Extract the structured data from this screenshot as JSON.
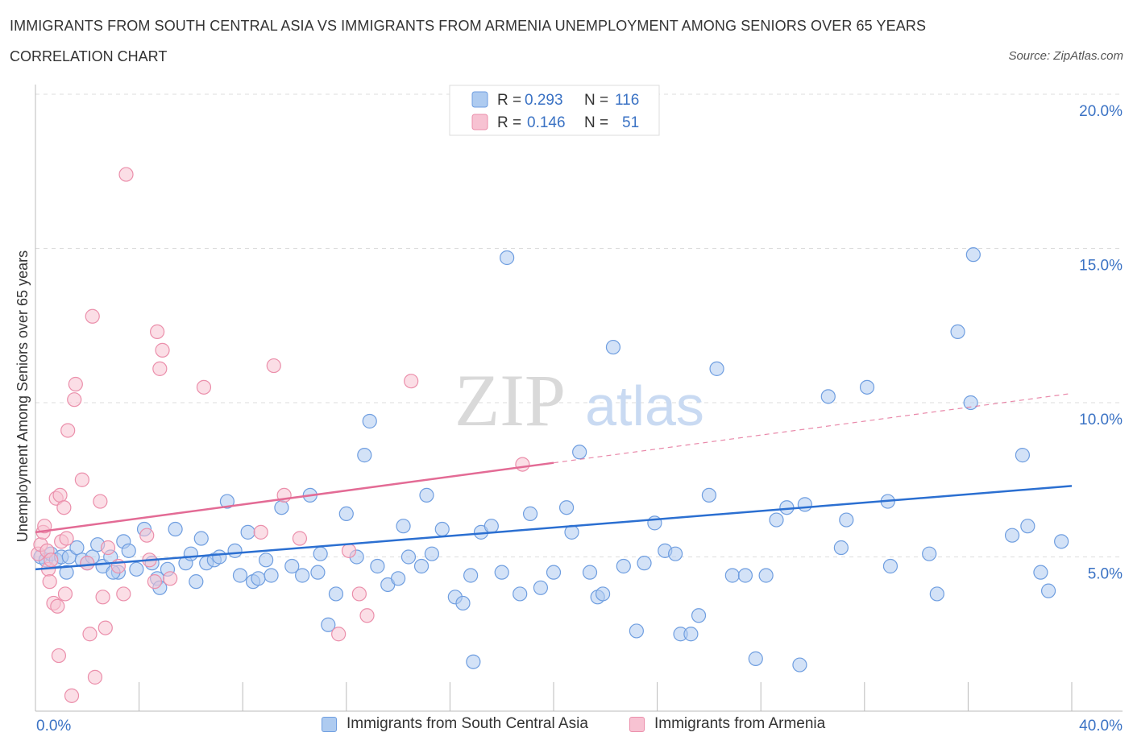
{
  "title": "IMMIGRANTS FROM SOUTH CENTRAL ASIA VS IMMIGRANTS FROM ARMENIA UNEMPLOYMENT AMONG SENIORS OVER 65 YEARS",
  "subtitle": "CORRELATION CHART",
  "source": "Source: ZipAtlas.com",
  "watermark": {
    "zip": "ZIP",
    "atlas": "atlas"
  },
  "colors": {
    "blue_fill": "#aecbf0",
    "blue_stroke": "#6f9ee0",
    "blue_line": "#2b6fd1",
    "pink_fill": "#f7c2d2",
    "pink_stroke": "#eb8fab",
    "pink_line": "#e36b95",
    "axis_label": "#3a72c4",
    "grid": "#dddddd"
  },
  "legend": {
    "r_label": "R =",
    "n_label": "N =",
    "series": [
      {
        "r": "0.293",
        "n": "116"
      },
      {
        "r": "0.146",
        "n": "51"
      }
    ]
  },
  "chart_data": {
    "type": "scatter",
    "title": "IMMIGRANTS FROM SOUTH CENTRAL ASIA VS IMMIGRANTS FROM ARMENIA UNEMPLOYMENT AMONG SENIORS OVER 65 YEARS",
    "xlabel": "",
    "ylabel": "Unemployment Among Seniors over 65 years",
    "xlim": [
      0,
      40
    ],
    "ylim": [
      0,
      20
    ],
    "x_tick_labels": [
      "0.0%",
      "40.0%"
    ],
    "y_ticks": [
      5,
      10,
      15,
      20
    ],
    "y_tick_labels": [
      "5.0%",
      "10.0%",
      "15.0%",
      "20.0%"
    ],
    "series": [
      {
        "name": "Immigrants from South Central Asia",
        "color": "blue",
        "trend": {
          "x0": 0,
          "y0": 4.6,
          "x1": 40,
          "y1": 7.3,
          "dashed_from": null
        },
        "points": [
          [
            0.2,
            5.0
          ],
          [
            0.4,
            4.9
          ],
          [
            0.6,
            5.1
          ],
          [
            0.8,
            4.9
          ],
          [
            1.0,
            5.0
          ],
          [
            1.2,
            4.5
          ],
          [
            1.3,
            5.0
          ],
          [
            1.6,
            5.3
          ],
          [
            1.8,
            4.9
          ],
          [
            2.0,
            4.8
          ],
          [
            2.2,
            5.0
          ],
          [
            2.4,
            5.4
          ],
          [
            2.6,
            4.7
          ],
          [
            2.9,
            5.0
          ],
          [
            3.2,
            4.5
          ],
          [
            3.4,
            5.5
          ],
          [
            3.6,
            5.2
          ],
          [
            3.9,
            4.6
          ],
          [
            4.2,
            5.9
          ],
          [
            4.5,
            4.8
          ],
          [
            4.7,
            4.3
          ],
          [
            4.8,
            4.0
          ],
          [
            5.1,
            4.6
          ],
          [
            5.4,
            5.9
          ],
          [
            5.8,
            4.8
          ],
          [
            6.0,
            5.1
          ],
          [
            6.2,
            4.2
          ],
          [
            6.6,
            4.8
          ],
          [
            6.9,
            4.9
          ],
          [
            7.1,
            5.0
          ],
          [
            7.4,
            6.8
          ],
          [
            7.7,
            5.2
          ],
          [
            7.9,
            4.4
          ],
          [
            8.2,
            5.8
          ],
          [
            8.4,
            4.2
          ],
          [
            8.6,
            4.3
          ],
          [
            8.9,
            4.9
          ],
          [
            9.1,
            4.4
          ],
          [
            9.5,
            6.6
          ],
          [
            9.9,
            4.7
          ],
          [
            10.3,
            4.4
          ],
          [
            10.6,
            7.0
          ],
          [
            11.0,
            5.1
          ],
          [
            11.3,
            2.8
          ],
          [
            11.6,
            3.8
          ],
          [
            12.0,
            6.4
          ],
          [
            12.4,
            5.0
          ],
          [
            12.7,
            8.3
          ],
          [
            12.9,
            9.4
          ],
          [
            13.2,
            4.7
          ],
          [
            13.6,
            4.1
          ],
          [
            14.0,
            4.3
          ],
          [
            14.2,
            6.0
          ],
          [
            14.4,
            5.0
          ],
          [
            14.9,
            4.7
          ],
          [
            15.1,
            7.0
          ],
          [
            15.3,
            5.1
          ],
          [
            15.7,
            5.9
          ],
          [
            16.2,
            3.7
          ],
          [
            16.5,
            3.5
          ],
          [
            16.9,
            1.6
          ],
          [
            17.2,
            5.8
          ],
          [
            17.6,
            6.0
          ],
          [
            18.0,
            4.5
          ],
          [
            18.2,
            14.7
          ],
          [
            18.7,
            3.8
          ],
          [
            19.1,
            6.4
          ],
          [
            19.5,
            4.0
          ],
          [
            20.0,
            4.5
          ],
          [
            20.5,
            6.6
          ],
          [
            20.7,
            5.8
          ],
          [
            21.0,
            8.4
          ],
          [
            21.4,
            4.5
          ],
          [
            21.7,
            3.7
          ],
          [
            21.9,
            3.8
          ],
          [
            22.3,
            11.8
          ],
          [
            22.7,
            4.7
          ],
          [
            23.2,
            2.6
          ],
          [
            23.5,
            4.8
          ],
          [
            23.9,
            6.1
          ],
          [
            24.3,
            5.2
          ],
          [
            24.7,
            5.1
          ],
          [
            24.9,
            2.5
          ],
          [
            25.3,
            2.5
          ],
          [
            25.6,
            3.1
          ],
          [
            26.0,
            7.0
          ],
          [
            26.3,
            11.1
          ],
          [
            26.9,
            4.4
          ],
          [
            27.4,
            4.4
          ],
          [
            27.8,
            1.7
          ],
          [
            28.2,
            4.4
          ],
          [
            28.6,
            6.2
          ],
          [
            29.0,
            6.6
          ],
          [
            29.5,
            1.5
          ],
          [
            29.7,
            6.7
          ],
          [
            30.6,
            10.2
          ],
          [
            31.1,
            5.3
          ],
          [
            31.3,
            6.2
          ],
          [
            32.1,
            10.5
          ],
          [
            32.9,
            6.8
          ],
          [
            33.0,
            4.7
          ],
          [
            34.5,
            5.1
          ],
          [
            34.8,
            3.8
          ],
          [
            36.1,
            10.0
          ],
          [
            37.7,
            5.7
          ],
          [
            38.8,
            4.5
          ],
          [
            39.1,
            3.9
          ],
          [
            35.6,
            12.3
          ],
          [
            36.2,
            14.8
          ],
          [
            38.1,
            8.3
          ],
          [
            38.3,
            6.0
          ],
          [
            39.6,
            5.5
          ],
          [
            3.0,
            4.5
          ],
          [
            6.4,
            5.6
          ],
          [
            10.9,
            4.5
          ],
          [
            16.8,
            4.4
          ]
        ]
      },
      {
        "name": "Immigrants from Armenia",
        "color": "pink",
        "trend": {
          "x0": 0,
          "y0": 5.8,
          "x1": 40,
          "y1": 10.3,
          "dashed_from": 20
        },
        "points": [
          [
            0.1,
            5.1
          ],
          [
            0.2,
            5.4
          ],
          [
            0.3,
            5.8
          ],
          [
            0.35,
            6.0
          ],
          [
            0.45,
            5.2
          ],
          [
            0.5,
            4.6
          ],
          [
            0.55,
            4.2
          ],
          [
            0.6,
            4.9
          ],
          [
            0.7,
            3.5
          ],
          [
            0.8,
            6.9
          ],
          [
            0.85,
            3.4
          ],
          [
            0.9,
            1.8
          ],
          [
            0.95,
            7.0
          ],
          [
            1.0,
            5.5
          ],
          [
            1.1,
            6.6
          ],
          [
            1.15,
            3.8
          ],
          [
            1.2,
            5.6
          ],
          [
            1.25,
            9.1
          ],
          [
            1.4,
            0.5
          ],
          [
            1.5,
            10.1
          ],
          [
            1.55,
            10.6
          ],
          [
            1.8,
            7.5
          ],
          [
            2.0,
            4.8
          ],
          [
            2.1,
            2.5
          ],
          [
            2.2,
            12.8
          ],
          [
            2.3,
            1.1
          ],
          [
            2.5,
            6.8
          ],
          [
            2.6,
            3.7
          ],
          [
            2.7,
            2.7
          ],
          [
            2.8,
            5.3
          ],
          [
            3.2,
            4.7
          ],
          [
            3.4,
            3.8
          ],
          [
            3.5,
            17.4
          ],
          [
            4.3,
            5.7
          ],
          [
            4.4,
            4.9
          ],
          [
            4.6,
            4.2
          ],
          [
            4.7,
            12.3
          ],
          [
            4.8,
            11.1
          ],
          [
            4.9,
            11.7
          ],
          [
            5.2,
            4.3
          ],
          [
            6.5,
            10.5
          ],
          [
            8.7,
            5.8
          ],
          [
            9.2,
            11.2
          ],
          [
            9.6,
            7.0
          ],
          [
            10.2,
            5.6
          ],
          [
            11.7,
            2.5
          ],
          [
            12.1,
            5.2
          ],
          [
            12.5,
            3.8
          ],
          [
            12.8,
            3.1
          ],
          [
            14.5,
            10.7
          ],
          [
            18.8,
            8.0
          ]
        ]
      }
    ]
  }
}
